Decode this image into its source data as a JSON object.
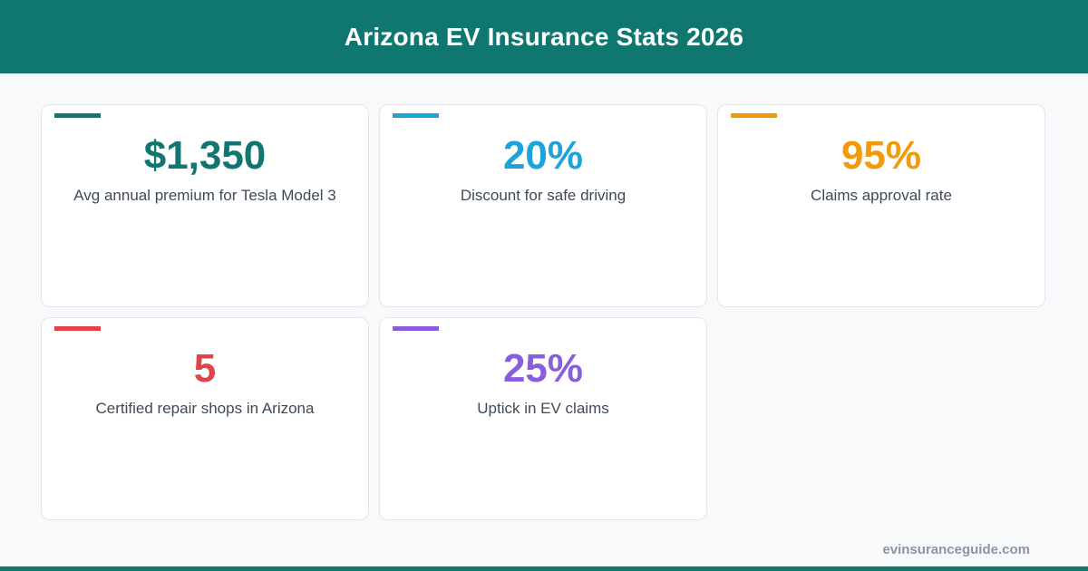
{
  "header": {
    "title": "Arizona EV Insurance Stats 2026"
  },
  "stats": [
    {
      "value": "$1,350",
      "label": "Avg annual premium for Tesla Model 3",
      "color": "#0f7670"
    },
    {
      "value": "20%",
      "label": "Discount for safe driving",
      "color": "#1ba3dc"
    },
    {
      "value": "95%",
      "label": "Claims approval rate",
      "color": "#f19a0c"
    },
    {
      "value": "5",
      "label": "Certified repair shops in Arizona",
      "color": "#e04448"
    },
    {
      "value": "25%",
      "label": "Uptick in EV claims",
      "color": "#8a5ce0"
    }
  ],
  "footer": {
    "site": "evinsuranceguide.com"
  },
  "colors": {
    "brand": "#0f7670"
  }
}
